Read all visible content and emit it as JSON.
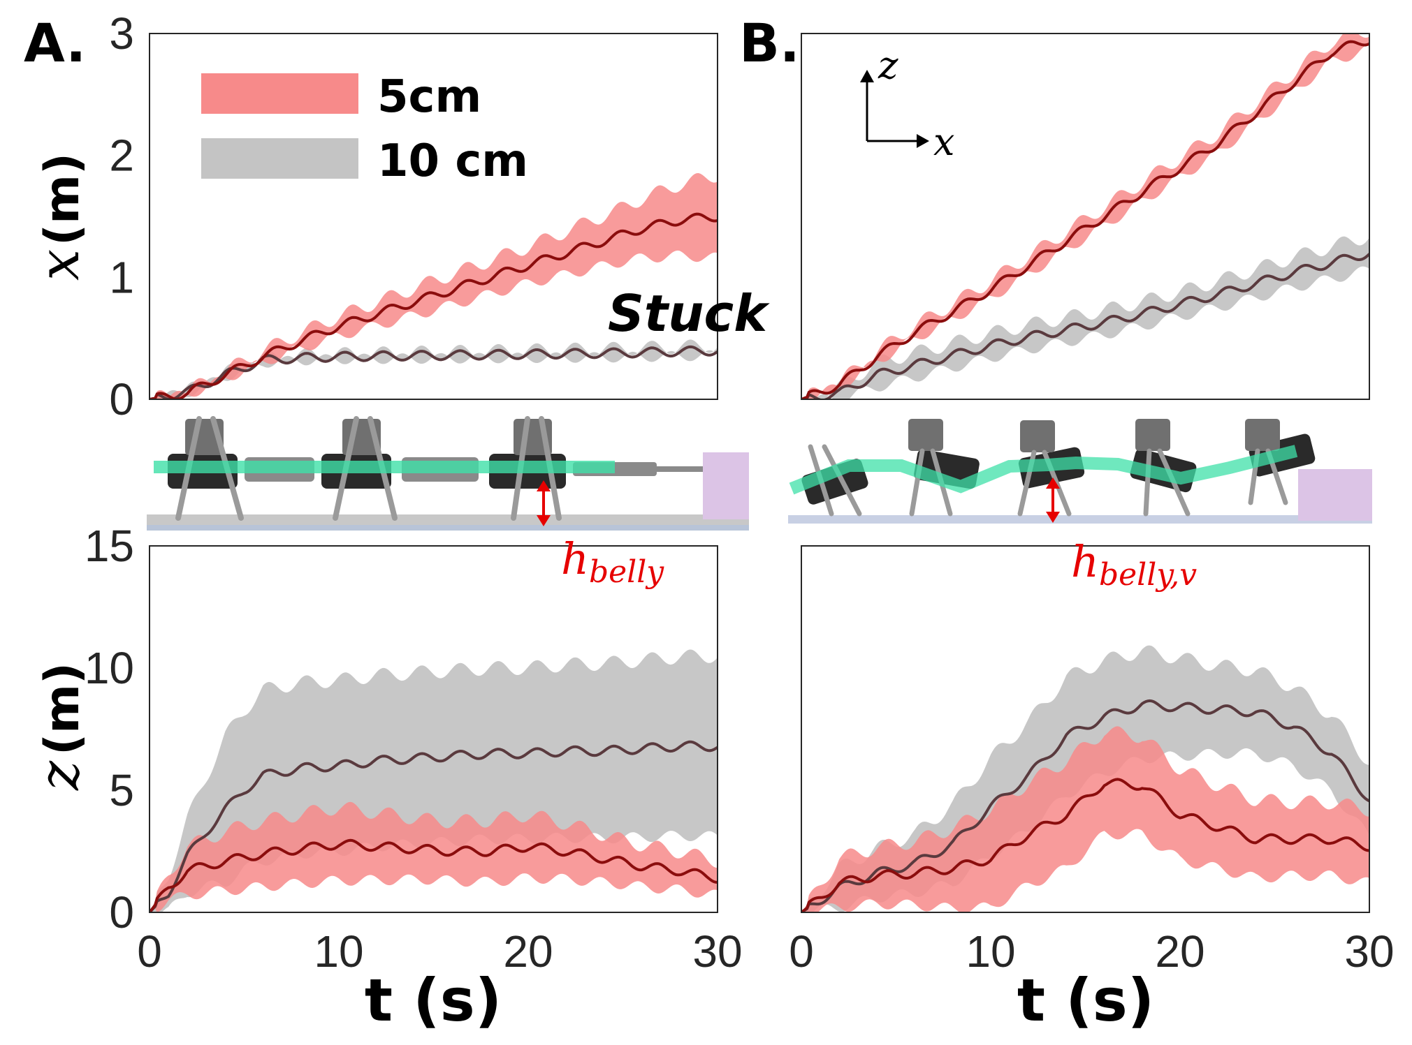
{
  "colors": {
    "red_band": "#f78a8a",
    "gray_band": "#c4c4c4",
    "red_line": "#8b0d0d",
    "gray_line": "#5a3a3e",
    "green_spine": "#3fe0a8",
    "arrow": "#e60000",
    "wall": "#dcc4e6"
  },
  "panel_labels": [
    "A.",
    "B."
  ],
  "legend": {
    "entries": [
      {
        "label": "5cm",
        "color": "#f78a8a"
      },
      {
        "label": "10 cm",
        "color": "#c4c4c4"
      }
    ]
  },
  "annotations": {
    "stuck": "Stuck",
    "h_belly_main": "h",
    "h_belly_sub": "belly",
    "h_belly_v_main": "h",
    "h_belly_v_sub": "belly,v",
    "coord_z": "z",
    "coord_x": "x"
  },
  "chart_data": [
    {
      "id": "A-top",
      "type": "line",
      "ylabel_var": "x",
      "ylabel_unit": "(m)",
      "xlim": [
        0,
        30
      ],
      "ylim": [
        0,
        3
      ],
      "xticks": [],
      "yticks": [
        "0",
        "1",
        "2",
        "3"
      ],
      "series": [
        {
          "name": "5cm",
          "mean": [
            [
              0,
              0
            ],
            [
              2,
              0.05
            ],
            [
              4,
              0.2
            ],
            [
              6,
              0.35
            ],
            [
              8,
              0.48
            ],
            [
              10,
              0.6
            ],
            [
              12,
              0.7
            ],
            [
              14,
              0.8
            ],
            [
              16,
              0.9
            ],
            [
              18,
              1.0
            ],
            [
              20,
              1.1
            ],
            [
              22,
              1.2
            ],
            [
              24,
              1.3
            ],
            [
              26,
              1.4
            ],
            [
              28,
              1.47
            ],
            [
              30,
              1.5
            ]
          ],
          "spread": [
            [
              0,
              0
            ],
            [
              5,
              0.04
            ],
            [
              10,
              0.08
            ],
            [
              15,
              0.12
            ],
            [
              20,
              0.15
            ],
            [
              25,
              0.22
            ],
            [
              30,
              0.34
            ]
          ]
        },
        {
          "name": "10 cm",
          "mean": [
            [
              0,
              0
            ],
            [
              2,
              0.06
            ],
            [
              4,
              0.2
            ],
            [
              6,
              0.32
            ],
            [
              8,
              0.34
            ],
            [
              10,
              0.35
            ],
            [
              15,
              0.36
            ],
            [
              20,
              0.37
            ],
            [
              25,
              0.38
            ],
            [
              30,
              0.4
            ]
          ],
          "spread": [
            [
              0,
              0
            ],
            [
              5,
              0.02
            ],
            [
              10,
              0.02
            ],
            [
              20,
              0.03
            ],
            [
              30,
              0.04
            ]
          ]
        }
      ]
    },
    {
      "id": "B-top",
      "type": "line",
      "xlim": [
        0,
        30
      ],
      "ylim": [
        0,
        3
      ],
      "xticks": [],
      "yticks": [],
      "series": [
        {
          "name": "5cm",
          "mean": [
            [
              0,
              0
            ],
            [
              2,
              0.12
            ],
            [
              4,
              0.35
            ],
            [
              6,
              0.55
            ],
            [
              8,
              0.72
            ],
            [
              10,
              0.9
            ],
            [
              12,
              1.1
            ],
            [
              14,
              1.3
            ],
            [
              16,
              1.5
            ],
            [
              18,
              1.7
            ],
            [
              20,
              1.9
            ],
            [
              22,
              2.1
            ],
            [
              24,
              2.35
            ],
            [
              26,
              2.6
            ],
            [
              28,
              2.85
            ],
            [
              30,
              2.95
            ]
          ],
          "spread": [
            [
              0,
              0
            ],
            [
              5,
              0.05
            ],
            [
              10,
              0.07
            ],
            [
              20,
              0.08
            ],
            [
              30,
              0.08
            ]
          ]
        },
        {
          "name": "10 cm",
          "mean": [
            [
              0,
              0
            ],
            [
              2,
              0.05
            ],
            [
              4,
              0.2
            ],
            [
              6,
              0.28
            ],
            [
              8,
              0.36
            ],
            [
              10,
              0.44
            ],
            [
              12,
              0.51
            ],
            [
              14,
              0.57
            ],
            [
              16,
              0.63
            ],
            [
              18,
              0.7
            ],
            [
              20,
              0.78
            ],
            [
              22,
              0.86
            ],
            [
              24,
              0.95
            ],
            [
              26,
              1.04
            ],
            [
              28,
              1.12
            ],
            [
              30,
              1.2
            ]
          ],
          "spread": [
            [
              0,
              0
            ],
            [
              4,
              0.1
            ],
            [
              10,
              0.1
            ],
            [
              20,
              0.1
            ],
            [
              30,
              0.14
            ]
          ]
        }
      ]
    },
    {
      "id": "A-bottom",
      "type": "line",
      "ylabel_var": "z",
      "ylabel_unit": "(m)",
      "xlabel": "t (s)",
      "xlim": [
        0,
        30
      ],
      "ylim": [
        0,
        15
      ],
      "xticks": [
        "0",
        "10",
        "20",
        "30"
      ],
      "yticks": [
        "0",
        "5",
        "10",
        "15"
      ],
      "series": [
        {
          "name": "5cm",
          "mean": [
            [
              0,
              0
            ],
            [
              1,
              1
            ],
            [
              2,
              1.7
            ],
            [
              4,
              2.1
            ],
            [
              6,
              2.4
            ],
            [
              8,
              2.6
            ],
            [
              10,
              2.8
            ],
            [
              12,
              2.7
            ],
            [
              14,
              2.6
            ],
            [
              16,
              2.5
            ],
            [
              18,
              2.5
            ],
            [
              20,
              2.7
            ],
            [
              22,
              2.5
            ],
            [
              24,
              2.2
            ],
            [
              26,
              1.9
            ],
            [
              28,
              1.7
            ],
            [
              30,
              1.4
            ]
          ],
          "spread": [
            [
              0,
              0
            ],
            [
              2,
              1.0
            ],
            [
              5,
              1.3
            ],
            [
              10,
              1.5
            ],
            [
              15,
              1.2
            ],
            [
              20,
              1.3
            ],
            [
              25,
              0.9
            ],
            [
              30,
              0.7
            ]
          ]
        },
        {
          "name": "10 cm",
          "mean": [
            [
              0,
              0
            ],
            [
              1,
              0.8
            ],
            [
              2,
              2.3
            ],
            [
              3,
              3.3
            ],
            [
              4,
              4.2
            ],
            [
              5,
              5.0
            ],
            [
              6,
              5.6
            ],
            [
              8,
              5.9
            ],
            [
              10,
              6.0
            ],
            [
              12,
              6.2
            ],
            [
              14,
              6.3
            ],
            [
              16,
              6.4
            ],
            [
              18,
              6.5
            ],
            [
              20,
              6.5
            ],
            [
              22,
              6.6
            ],
            [
              24,
              6.6
            ],
            [
              26,
              6.7
            ],
            [
              28,
              6.8
            ],
            [
              30,
              6.8
            ]
          ],
          "spread": [
            [
              0,
              0
            ],
            [
              2,
              1.5
            ],
            [
              4,
              3.0
            ],
            [
              6,
              3.5
            ],
            [
              10,
              3.5
            ],
            [
              20,
              3.5
            ],
            [
              30,
              3.7
            ]
          ]
        }
      ]
    },
    {
      "id": "B-bottom",
      "type": "line",
      "xlabel": "t (s)",
      "xlim": [
        0,
        30
      ],
      "ylim": [
        0,
        15
      ],
      "xticks": [
        "0",
        "10",
        "20",
        "30"
      ],
      "yticks": [],
      "series": [
        {
          "name": "5cm",
          "mean": [
            [
              0,
              0
            ],
            [
              2,
              1.2
            ],
            [
              4,
              1.5
            ],
            [
              6,
              1.6
            ],
            [
              8,
              1.8
            ],
            [
              10,
              2.2
            ],
            [
              12,
              3.2
            ],
            [
              14,
              4.0
            ],
            [
              16,
              5.3
            ],
            [
              18,
              5.2
            ],
            [
              20,
              4.0
            ],
            [
              22,
              3.5
            ],
            [
              24,
              3.0
            ],
            [
              26,
              3.0
            ],
            [
              28,
              3.0
            ],
            [
              30,
              2.7
            ]
          ],
          "spread": [
            [
              0,
              0
            ],
            [
              2,
              1.0
            ],
            [
              6,
              1.3
            ],
            [
              10,
              2.0
            ],
            [
              14,
              2.2
            ],
            [
              18,
              2.0
            ],
            [
              22,
              1.7
            ],
            [
              26,
              1.5
            ],
            [
              30,
              1.5
            ]
          ]
        },
        {
          "name": "10 cm",
          "mean": [
            [
              0,
              0
            ],
            [
              2,
              1.0
            ],
            [
              4,
              1.6
            ],
            [
              6,
              2.0
            ],
            [
              8,
              2.8
            ],
            [
              10,
              4.3
            ],
            [
              12,
              5.6
            ],
            [
              14,
              7.2
            ],
            [
              16,
              8.0
            ],
            [
              18,
              8.5
            ],
            [
              20,
              8.4
            ],
            [
              22,
              8.3
            ],
            [
              24,
              8.2
            ],
            [
              26,
              7.6
            ],
            [
              28,
              6.5
            ],
            [
              30,
              4.6
            ]
          ],
          "spread": [
            [
              0,
              0
            ],
            [
              2,
              0.8
            ],
            [
              6,
              1.2
            ],
            [
              10,
              2.0
            ],
            [
              14,
              2.4
            ],
            [
              18,
              2.2
            ],
            [
              22,
              1.8
            ],
            [
              26,
              1.6
            ],
            [
              30,
              1.5
            ]
          ]
        }
      ]
    }
  ]
}
